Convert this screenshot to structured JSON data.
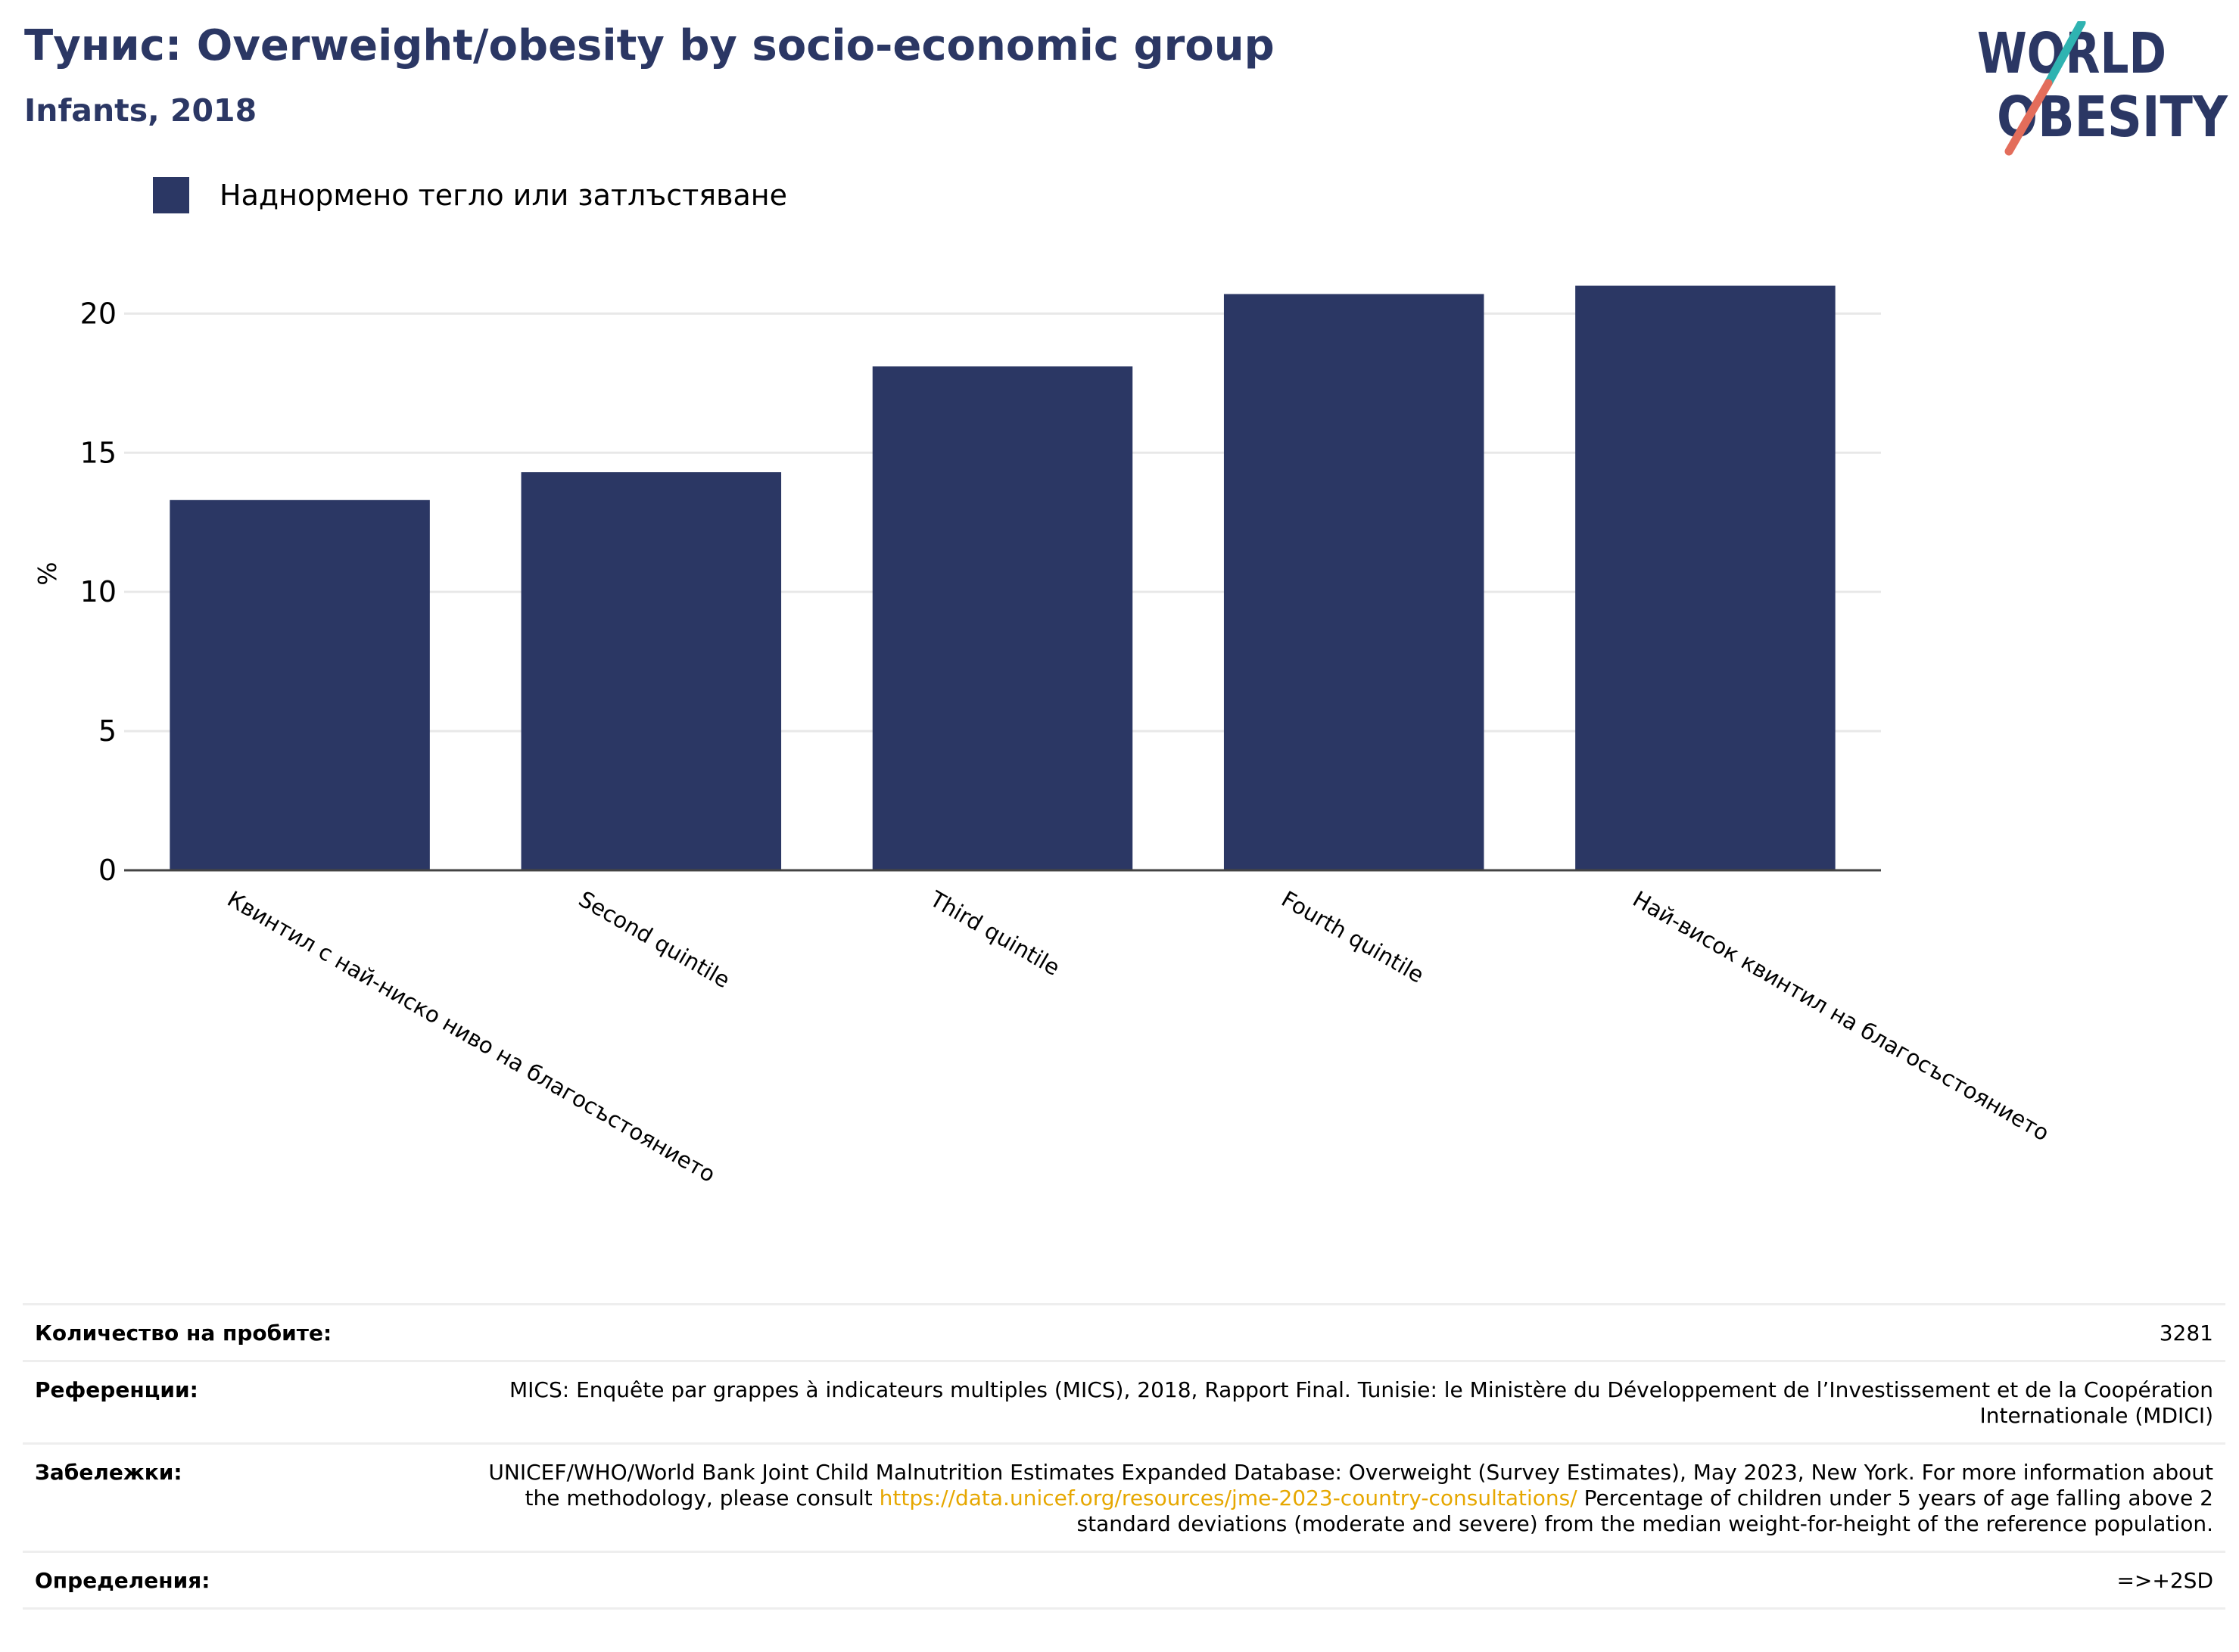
{
  "header": {
    "title": "Тунис: Overweight/obesity by socio-economic group",
    "subtitle": "Infants, 2018"
  },
  "logo": {
    "line1": "WORLD",
    "line2": "OBESITY"
  },
  "legend": {
    "items": [
      {
        "label": "Наднормено тегло или затлъстяване",
        "color": "#2b3764"
      }
    ]
  },
  "chart_data": {
    "type": "bar",
    "categories": [
      "Квинтил с най-ниско ниво на благосъстоянието",
      "Second quintile",
      "Third quintile",
      "Fourth quintile",
      "Най-висок квинтил на благосъстоянието"
    ],
    "series": [
      {
        "name": "Наднормено тегло или затлъстяване",
        "values": [
          13.3,
          14.3,
          18.1,
          20.7,
          21.0
        ]
      }
    ],
    "ylabel": "%",
    "ylim": [
      0,
      23
    ],
    "yticks": [
      0,
      5,
      10,
      15,
      20
    ],
    "grid": true,
    "legend_position": "top-left",
    "bar_color": "#2b3764"
  },
  "info": {
    "sample_size": {
      "label": "Количество на пробите:",
      "value": "3281"
    },
    "references": {
      "label": "Референции:",
      "value": "MICS: Enquête par grappes à indicateurs multiples (MICS), 2018, Rapport Final. Tunisie: le Ministère du Développement de l’Investissement et de la Coopération Internationale (MDICI)"
    },
    "notes": {
      "label": "Забележки:",
      "value_before": "UNICEF/WHO/World Bank Joint Child Malnutrition Estimates Expanded Database: Overweight (Survey Estimates), May 2023, New York. For more information about the methodology, please consult",
      "link": "https://data.unicef.org/resources/jme-2023-country-consultations/",
      "value_after": "Percentage of children under 5 years of age falling above 2 standard deviations (moderate and severe) from the median weight-for-height of the reference population."
    },
    "definitions": {
      "label": "Определения:",
      "value": "=>+2SD"
    }
  }
}
